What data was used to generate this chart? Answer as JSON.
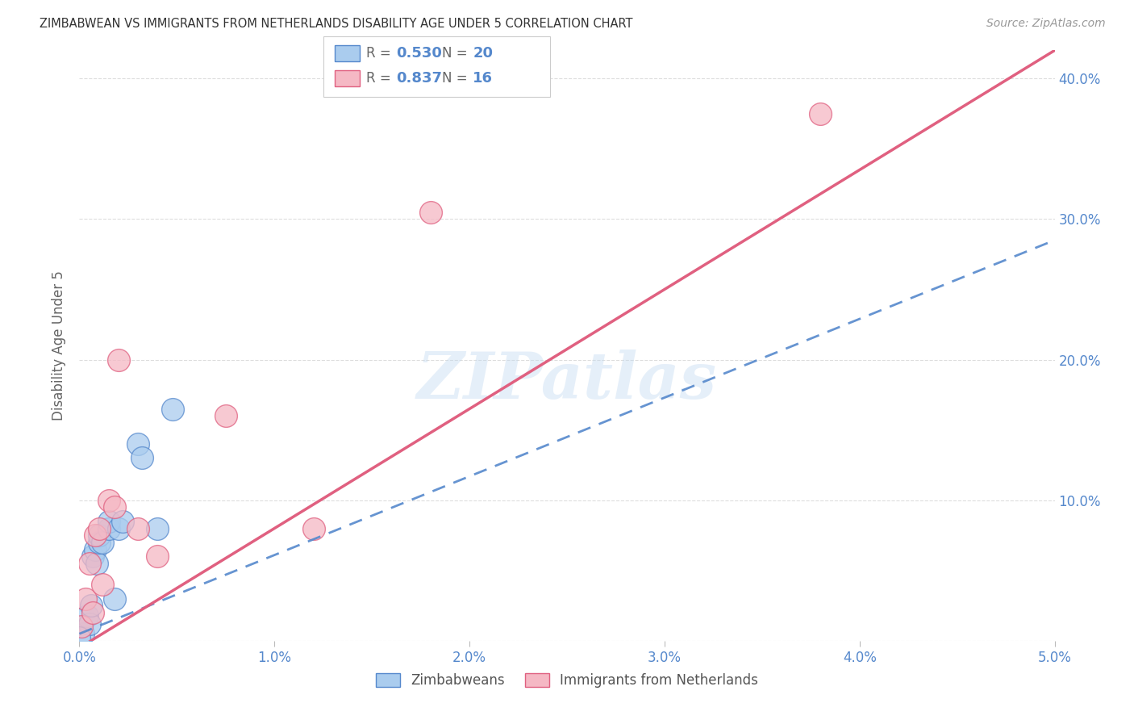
{
  "title": "ZIMBABWEAN VS IMMIGRANTS FROM NETHERLANDS DISABILITY AGE UNDER 5 CORRELATION CHART",
  "source": "Source: ZipAtlas.com",
  "ylabel": "Disability Age Under 5",
  "xlim": [
    0.0,
    0.05
  ],
  "ylim": [
    0.0,
    0.42
  ],
  "xticks": [
    0.0,
    0.01,
    0.02,
    0.03,
    0.04,
    0.05
  ],
  "yticks": [
    0.0,
    0.1,
    0.2,
    0.3,
    0.4
  ],
  "xtick_labels": [
    "0.0%",
    "1.0%",
    "2.0%",
    "3.0%",
    "4.0%",
    "5.0%"
  ],
  "ytick_labels_right": [
    "",
    "10.0%",
    "20.0%",
    "30.0%",
    "40.0%"
  ],
  "legend1_R": "0.530",
  "legend1_N": "20",
  "legend2_R": "0.837",
  "legend2_N": "16",
  "blue_scatter_x": [
    0.0002,
    0.0004,
    0.0005,
    0.0006,
    0.0007,
    0.0008,
    0.0009,
    0.001,
    0.001,
    0.0012,
    0.0015,
    0.0015,
    0.0018,
    0.002,
    0.0022,
    0.003,
    0.0032,
    0.004,
    0.0048,
    0.0
  ],
  "blue_scatter_y": [
    0.005,
    0.018,
    0.012,
    0.025,
    0.06,
    0.065,
    0.055,
    0.07,
    0.075,
    0.07,
    0.08,
    0.085,
    0.03,
    0.08,
    0.085,
    0.14,
    0.13,
    0.08,
    0.165,
    0.002
  ],
  "pink_scatter_x": [
    0.0001,
    0.0003,
    0.0005,
    0.0007,
    0.0008,
    0.001,
    0.0012,
    0.0015,
    0.0018,
    0.002,
    0.003,
    0.004,
    0.0075,
    0.012,
    0.018,
    0.038
  ],
  "pink_scatter_y": [
    0.01,
    0.03,
    0.055,
    0.02,
    0.075,
    0.08,
    0.04,
    0.1,
    0.095,
    0.2,
    0.08,
    0.06,
    0.16,
    0.08,
    0.305,
    0.375
  ],
  "blue_line_x0": 0.0,
  "blue_line_x1": 0.05,
  "blue_line_y0": 0.005,
  "blue_line_y1": 0.285,
  "pink_line_x0": 0.0,
  "pink_line_x1": 0.05,
  "pink_line_y0": -0.005,
  "pink_line_y1": 0.42,
  "blue_color": "#aaccee",
  "pink_color": "#f5b8c4",
  "blue_line_color": "#5588cc",
  "pink_line_color": "#e06080",
  "watermark": "ZIPatlas",
  "background_color": "#ffffff",
  "grid_color": "#dddddd",
  "legend_label1": "Zimbabweans",
  "legend_label2": "Immigrants from Netherlands"
}
